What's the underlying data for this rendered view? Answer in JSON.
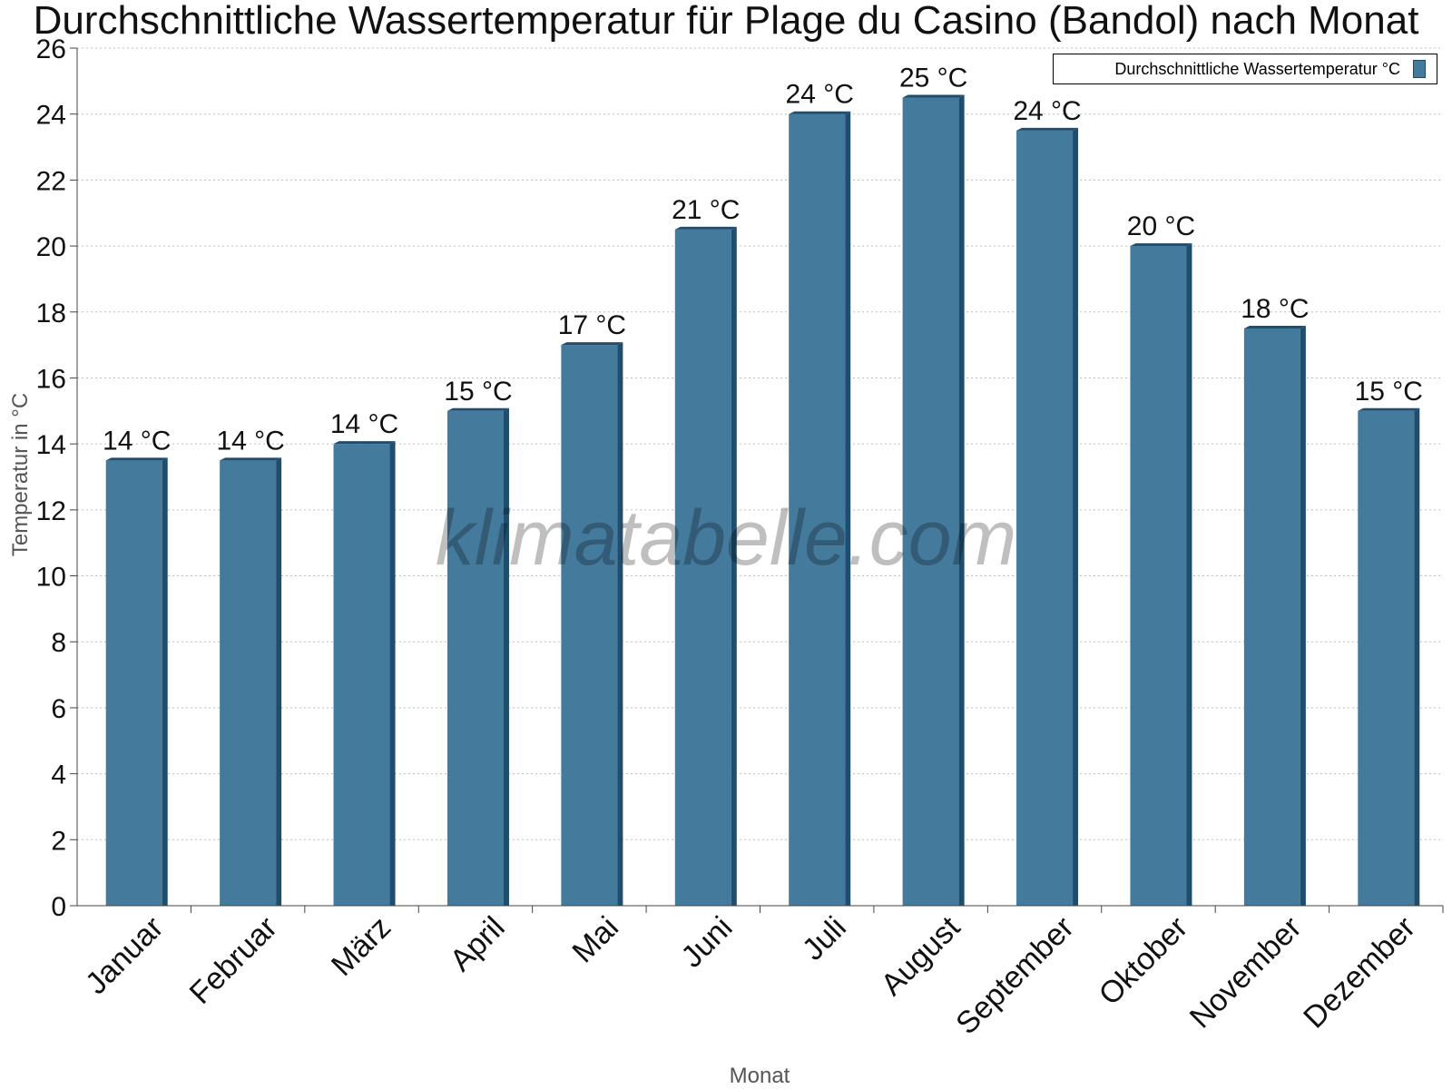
{
  "chart_data": {
    "type": "bar",
    "title": "Durchschnittliche Wassertemperatur für Plage du Casino (Bandol) nach Monat",
    "xlabel": "Monat",
    "ylabel": "Temperatur in °C",
    "ylim": [
      0,
      26
    ],
    "yticks": [
      0,
      2,
      4,
      6,
      8,
      10,
      12,
      14,
      16,
      18,
      20,
      22,
      24,
      26
    ],
    "grid": true,
    "legend_position": "top-right",
    "categories": [
      "Januar",
      "Februar",
      "März",
      "April",
      "Mai",
      "Juni",
      "Juli",
      "August",
      "September",
      "Oktober",
      "November",
      "Dezember"
    ],
    "series": [
      {
        "name": "Durchschnittliche Wassertemperatur °C",
        "values": [
          13.5,
          13.5,
          14,
          15,
          17,
          20.5,
          24,
          24.5,
          23.5,
          20,
          17.5,
          15
        ],
        "labels": [
          "14 °C",
          "14 °C",
          "14 °C",
          "15 °C",
          "17 °C",
          "21 °C",
          "24 °C",
          "25 °C",
          "24 °C",
          "20 °C",
          "18 °C",
          "15 °C"
        ],
        "color": "#447a9c"
      }
    ],
    "watermark": "klimatabelle.com"
  }
}
